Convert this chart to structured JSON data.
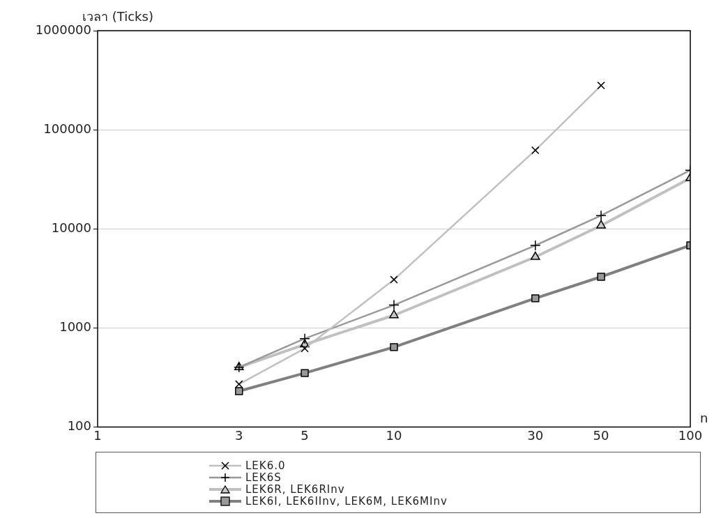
{
  "chart_data": {
    "type": "line",
    "xlabel": "n",
    "ylabel": "เวลา (Ticks)",
    "log": "xy",
    "grid": "y",
    "legend": "bottom",
    "x": [
      3,
      5,
      10,
      30,
      50,
      100
    ],
    "xlim": [
      1,
      100
    ],
    "xticks": [
      1,
      3,
      5,
      10,
      30,
      50,
      100
    ],
    "ylim": [
      100,
      1000000
    ],
    "yticks": [
      100,
      1000,
      10000,
      100000,
      1000000
    ],
    "series": [
      {
        "name": "LEK6.0",
        "color": "#c0c0c0",
        "marker": "cross",
        "values": [
          270,
          620,
          3070,
          62000,
          280000,
          null
        ]
      },
      {
        "name": "LEK6S",
        "color": "#999999",
        "marker": "plus",
        "values": [
          400,
          780,
          1700,
          6800,
          13600,
          39000
        ]
      },
      {
        "name": "LEK6R, LEK6RInv",
        "color": "#c0c0c0",
        "marker": "triangle",
        "values": [
          400,
          680,
          1340,
          5200,
          10800,
          32500
        ]
      },
      {
        "name": "LEK6I, LEK6IInv, LEK6M, LEK6MInv",
        "color": "#808080",
        "marker": "square",
        "values": [
          230,
          350,
          640,
          1990,
          3280,
          6800
        ]
      }
    ]
  }
}
